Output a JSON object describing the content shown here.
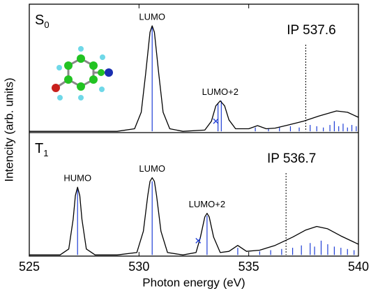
{
  "chart_data": {
    "type": "line",
    "xlabel": "Photon energy (eV)",
    "ylabel": "Intencity (arb. units)",
    "xlim": [
      525,
      540
    ],
    "xticks": [
      525,
      530,
      535,
      540
    ],
    "panels": [
      {
        "label": {
          "symbol": "S",
          "subscript": "0"
        },
        "ylim": [
          -0.01,
          1
        ],
        "color": "#000000",
        "x": [
          525,
          527,
          529,
          529.8,
          530.1,
          530.3,
          530.5,
          530.6,
          530.7,
          530.9,
          531.1,
          531.4,
          532,
          533,
          533.3,
          533.5,
          533.7,
          533.9,
          534.1,
          534.4,
          535,
          535.4,
          535.8,
          536.2,
          536.8,
          537.5,
          538.2,
          539,
          539.5,
          540
        ],
        "values": [
          0,
          0,
          0,
          0.02,
          0.15,
          0.45,
          0.78,
          0.83,
          0.78,
          0.45,
          0.15,
          0.02,
          0,
          0.01,
          0.08,
          0.2,
          0.24,
          0.2,
          0.09,
          0.02,
          0.02,
          0.045,
          0.02,
          0.025,
          0.05,
          0.08,
          0.12,
          0.16,
          0.15,
          0.11
        ],
        "sticks": {
          "color": "#1f3fd6",
          "x": [
            530.6,
            533.6,
            533.75,
            535.3,
            535.9,
            536.4,
            536.9,
            537.3,
            537.8,
            538.1,
            538.4,
            538.7,
            538.9,
            539.1,
            539.3,
            539.5,
            539.7,
            539.9
          ],
          "values": [
            0.83,
            0.22,
            0.24,
            0.03,
            0.02,
            0.03,
            0.04,
            0.03,
            0.05,
            0.04,
            0.03,
            0.05,
            0.08,
            0.04,
            0.06,
            0.03,
            0.05,
            0.04
          ]
        },
        "markers": {
          "color": "#1f3fd6",
          "x": [
            533.5
          ],
          "values": [
            0.08
          ]
        },
        "ip": {
          "value": 537.6,
          "label": "IP 537.6"
        },
        "peaks": [
          {
            "label": "LUMO",
            "x": 530.6
          },
          {
            "label": "LUMO+2",
            "x": 533.7
          }
        ]
      },
      {
        "label": {
          "symbol": "T",
          "subscript": "1"
        },
        "ylim": [
          -0.01,
          1.03
        ],
        "color": "#000000",
        "x": [
          525,
          526.4,
          526.8,
          527,
          527.1,
          527.2,
          527.3,
          527.4,
          527.6,
          528,
          529,
          529.9,
          530.2,
          530.4,
          530.5,
          530.6,
          530.7,
          530.8,
          531,
          531.3,
          532,
          532.6,
          532.8,
          533,
          533.1,
          533.2,
          533.4,
          533.7,
          534.1,
          534.5,
          534.9,
          535.5,
          536.2,
          537,
          537.6,
          538.1,
          538.6,
          539.2,
          540
        ],
        "values": [
          0,
          0,
          0.05,
          0.3,
          0.5,
          0.57,
          0.5,
          0.3,
          0.05,
          0,
          0,
          0.02,
          0.2,
          0.5,
          0.62,
          0.65,
          0.62,
          0.5,
          0.2,
          0.02,
          0,
          0.02,
          0.15,
          0.32,
          0.35,
          0.32,
          0.15,
          0.02,
          0.03,
          0.08,
          0.03,
          0.04,
          0.08,
          0.15,
          0.21,
          0.24,
          0.22,
          0.16,
          0.09
        ],
        "sticks": {
          "color": "#1f3fd6",
          "x": [
            527.2,
            530.6,
            533.1,
            534.5,
            535.5,
            536.0,
            536.5,
            537.0,
            537.4,
            537.8,
            538.0,
            538.3,
            538.6,
            538.9,
            539.2,
            539.5,
            539.8
          ],
          "values": [
            0.55,
            0.62,
            0.33,
            0.06,
            0.03,
            0.04,
            0.05,
            0.06,
            0.08,
            0.1,
            0.07,
            0.12,
            0.09,
            0.07,
            0.06,
            0.05,
            0.04
          ]
        },
        "markers": {
          "color": "#1f3fd6",
          "x": [
            532.7
          ],
          "values": [
            0.12
          ]
        },
        "ip": {
          "value": 536.7,
          "label": "IP 536.7"
        },
        "peaks": [
          {
            "label": "HUMO",
            "x": 527.2
          },
          {
            "label": "LUMO",
            "x": 530.6
          },
          {
            "label": "LUMO+2",
            "x": 533.1
          }
        ]
      }
    ]
  }
}
